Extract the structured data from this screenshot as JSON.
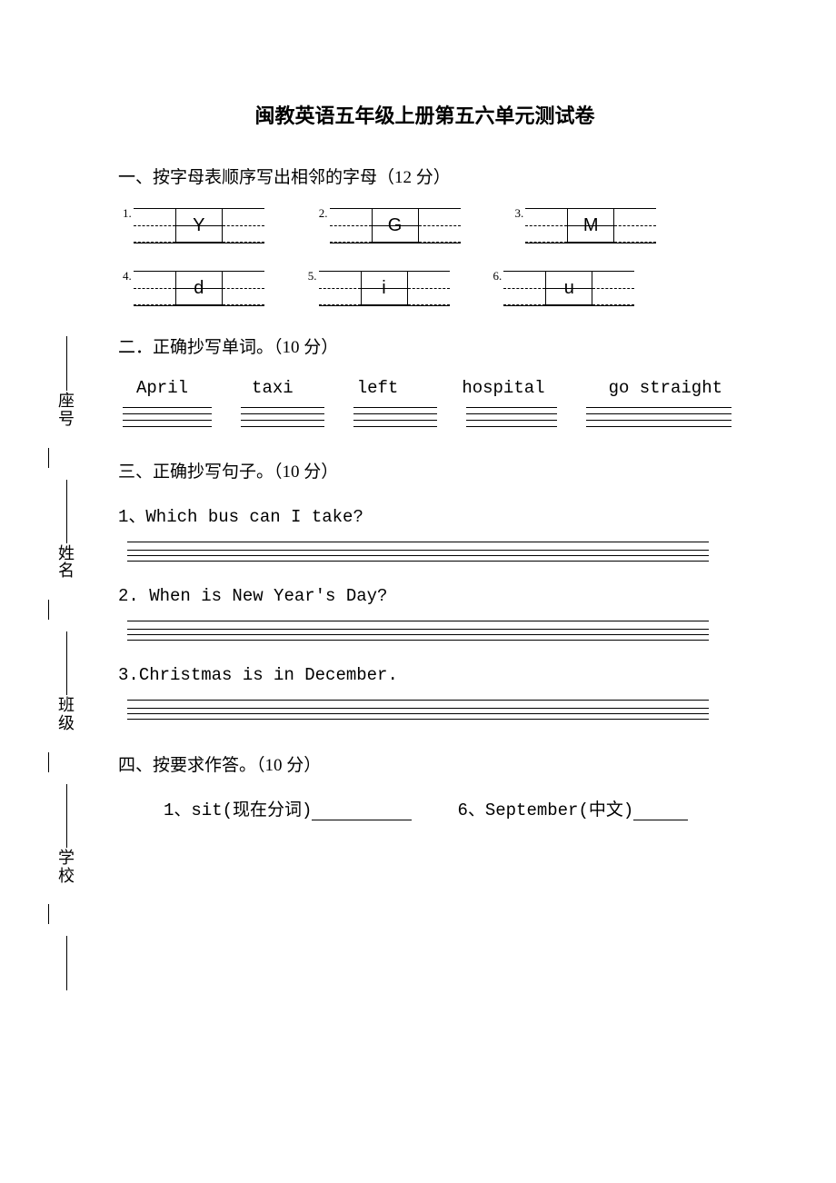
{
  "title": "闽教英语五年级上册第五六单元测试卷",
  "section1": {
    "heading": "一、按字母表顺序写出相邻的字母（12 分）"
  },
  "letters": {
    "row1": [
      {
        "num": "1.",
        "letter": "Y"
      },
      {
        "num": "2.",
        "letter": "G"
      },
      {
        "num": "3.",
        "letter": "M"
      }
    ],
    "row2": [
      {
        "num": "4.",
        "letter": "d"
      },
      {
        "num": "5.",
        "letter": "i"
      },
      {
        "num": "6.",
        "letter": "u"
      }
    ]
  },
  "section2": {
    "heading": "二．正确抄写单词。（10 分）",
    "words": [
      "April",
      "taxi",
      "left",
      "hospital",
      "go straight"
    ],
    "line_widths": [
      98,
      92,
      92,
      100,
      160
    ]
  },
  "section3": {
    "heading": "三、正确抄写句子。（10 分）",
    "items": [
      {
        "num": "1、",
        "text": "Which  bus  can I take?"
      },
      {
        "num": "2.",
        "text": " When is New Year's Day?"
      },
      {
        "num": "3.",
        "text": "Christmas is in December."
      }
    ]
  },
  "section4": {
    "heading": "四、按要求作答。（10 分）",
    "left": {
      "num": "1、",
      "word": "sit",
      "hint": "(现在分词)"
    },
    "right": {
      "num": "6、",
      "word": "September",
      "hint": "(中文)"
    }
  },
  "side": {
    "labels": [
      "座号",
      "姓名",
      "班级",
      "学校"
    ]
  },
  "colors": {
    "background": "#ffffff",
    "text": "#000000",
    "line": "#000000"
  }
}
